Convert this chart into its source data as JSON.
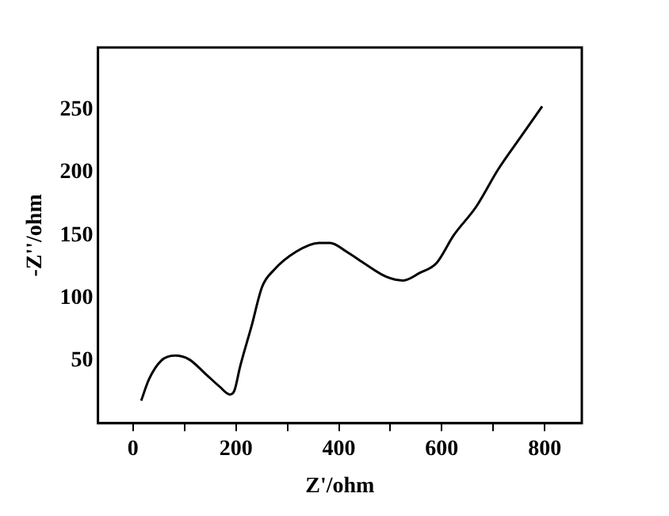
{
  "chart_data": {
    "type": "line",
    "xlabel": "Z'/ohm",
    "ylabel": "-Z''/ohm",
    "color": "#000000",
    "x": [
      16,
      31,
      55,
      82,
      109,
      142,
      169,
      188,
      197,
      208,
      230,
      251,
      273,
      317,
      361,
      383,
      415,
      448,
      492,
      525,
      557,
      590,
      623,
      667,
      710,
      754,
      795
    ],
    "values": [
      18,
      35,
      50,
      54,
      51,
      39,
      29,
      23,
      26,
      45,
      77,
      109,
      122,
      137,
      144,
      144,
      137,
      128,
      117,
      114,
      120,
      128,
      150,
      173,
      203,
      229,
      253
    ],
    "xlim": [
      -68,
      872
    ],
    "xticks": [
      0,
      {
        "value": 100,
        "label": null
      },
      200,
      {
        "value": 300,
        "label": null
      },
      400,
      {
        "value": 500,
        "label": null
      },
      600,
      {
        "value": 700,
        "label": null
      },
      800
    ],
    "ylim": [
      0,
      300
    ],
    "yticks": [
      50,
      100,
      150,
      200,
      250
    ],
    "grid": false,
    "legend": false,
    "marker": "none",
    "line_style": "solid"
  }
}
